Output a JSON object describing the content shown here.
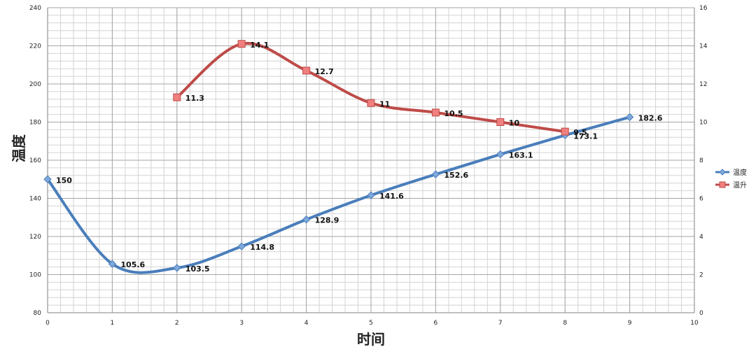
{
  "chart_data": {
    "type": "line",
    "xlabel": "时间",
    "ylabel": "温度",
    "xlim": [
      0,
      10
    ],
    "ylim": [
      80,
      240
    ],
    "y2lim": [
      0,
      16
    ],
    "x_ticks": [
      0,
      1,
      2,
      3,
      4,
      5,
      6,
      7,
      8,
      9,
      10
    ],
    "y_ticks": [
      80,
      100,
      120,
      140,
      160,
      180,
      200,
      220,
      240
    ],
    "y2_ticks": [
      0,
      2,
      4,
      6,
      8,
      10,
      12,
      14,
      16
    ],
    "grid": true,
    "legend_position": "right",
    "series": [
      {
        "name": "温度",
        "axis": "left",
        "color": "#4a7ebb",
        "marker": "diamond",
        "x": [
          0,
          1,
          2,
          3,
          4,
          5,
          6,
          7,
          8,
          9
        ],
        "values": [
          150,
          105.6,
          103.5,
          114.8,
          128.9,
          141.6,
          152.6,
          163.1,
          173.1,
          182.6
        ],
        "labels": [
          "150",
          "105.6",
          "103.5",
          "114.8",
          "128.9",
          "141.6",
          "152.6",
          "163.1",
          "173.1",
          "182.6"
        ]
      },
      {
        "name": "温升",
        "axis": "right",
        "color": "#be4b48",
        "marker": "square",
        "x": [
          2,
          3,
          4,
          5,
          6,
          7,
          8
        ],
        "values": [
          11.3,
          14.1,
          12.7,
          11,
          10.5,
          10,
          9.5
        ],
        "labels": [
          "11.3",
          "14.1",
          "12.7",
          "11",
          "10.5",
          "10",
          "9.5"
        ]
      }
    ]
  }
}
